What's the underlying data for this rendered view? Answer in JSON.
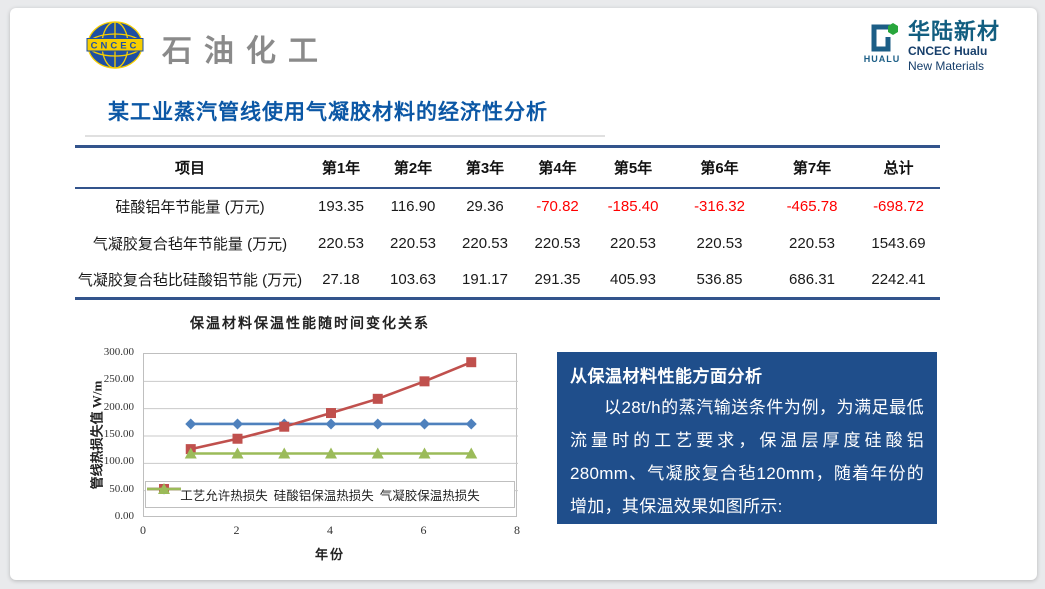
{
  "header": {
    "left_logo": {
      "badge": "CNCEC",
      "brand": "石油化工"
    },
    "right_logo": {
      "icon_text": "HUALU",
      "name_cn": "华陆新材",
      "name_en_line1": "CNCEC Hualu",
      "name_en_line2": "New Materials"
    }
  },
  "title": "某工业蒸汽管线使用气凝胶材料的经济性分析",
  "table": {
    "headers": [
      "项目",
      "第1年",
      "第2年",
      "第3年",
      "第4年",
      "第5年",
      "第6年",
      "第7年",
      "总计"
    ],
    "rows": [
      {
        "label": "硅酸铝年节能量 (万元)",
        "values": [
          "193.35",
          "116.90",
          "29.36",
          "-70.82",
          "-185.40",
          "-316.32",
          "-465.78",
          "-698.72"
        ]
      },
      {
        "label": "气凝胶复合毡年节能量 (万元)",
        "values": [
          "220.53",
          "220.53",
          "220.53",
          "220.53",
          "220.53",
          "220.53",
          "220.53",
          "1543.69"
        ]
      },
      {
        "label": "气凝胶复合毡比硅酸铝节能 (万元)",
        "values": [
          "27.18",
          "103.63",
          "191.17",
          "291.35",
          "405.93",
          "536.85",
          "686.31",
          "2242.41"
        ]
      }
    ]
  },
  "chart_data": {
    "type": "line",
    "title": "保温材料保温性能随时间变化关系",
    "xlabel": "年份",
    "ylabel": "管线热损失值 W/m",
    "x": [
      1,
      2,
      3,
      4,
      5,
      6,
      7
    ],
    "xlim": [
      0,
      8
    ],
    "x_ticks": [
      0,
      2,
      4,
      6,
      8
    ],
    "ylim": [
      0,
      300
    ],
    "y_tick_step": 50,
    "grid": true,
    "legend_position": "bottom-inside",
    "series": [
      {
        "name": "工艺允许热损失",
        "color": "#4F81BD",
        "marker": "diamond",
        "values": [
          172,
          172,
          172,
          172,
          172,
          172,
          172
        ]
      },
      {
        "name": "硅酸铝保温热损失",
        "color": "#C0504D",
        "marker": "square",
        "values": [
          126,
          145,
          167,
          192,
          218,
          250,
          285
        ]
      },
      {
        "name": "气凝胶保温热损失",
        "color": "#9BBB59",
        "marker": "triangle",
        "values": [
          118,
          118,
          118,
          118,
          118,
          118,
          118
        ]
      }
    ]
  },
  "analysis_box": {
    "heading": "从保温材料性能方面分析",
    "body": "以28t/h的蒸汽输送条件为例，为满足最低流量时的工艺要求，保温层厚度硅酸铝280mm、气凝胶复合毡120mm，随着年份的增加，其保温效果如图所示:"
  },
  "colors": {
    "title_blue": "#0B57A5",
    "table_border_navy": "#33548C",
    "negative_red": "#FF0000",
    "analysis_box_bg": "#1F4E8B",
    "series_blue": "#4F81BD",
    "series_red": "#C0504D",
    "series_green": "#9BBB59"
  }
}
